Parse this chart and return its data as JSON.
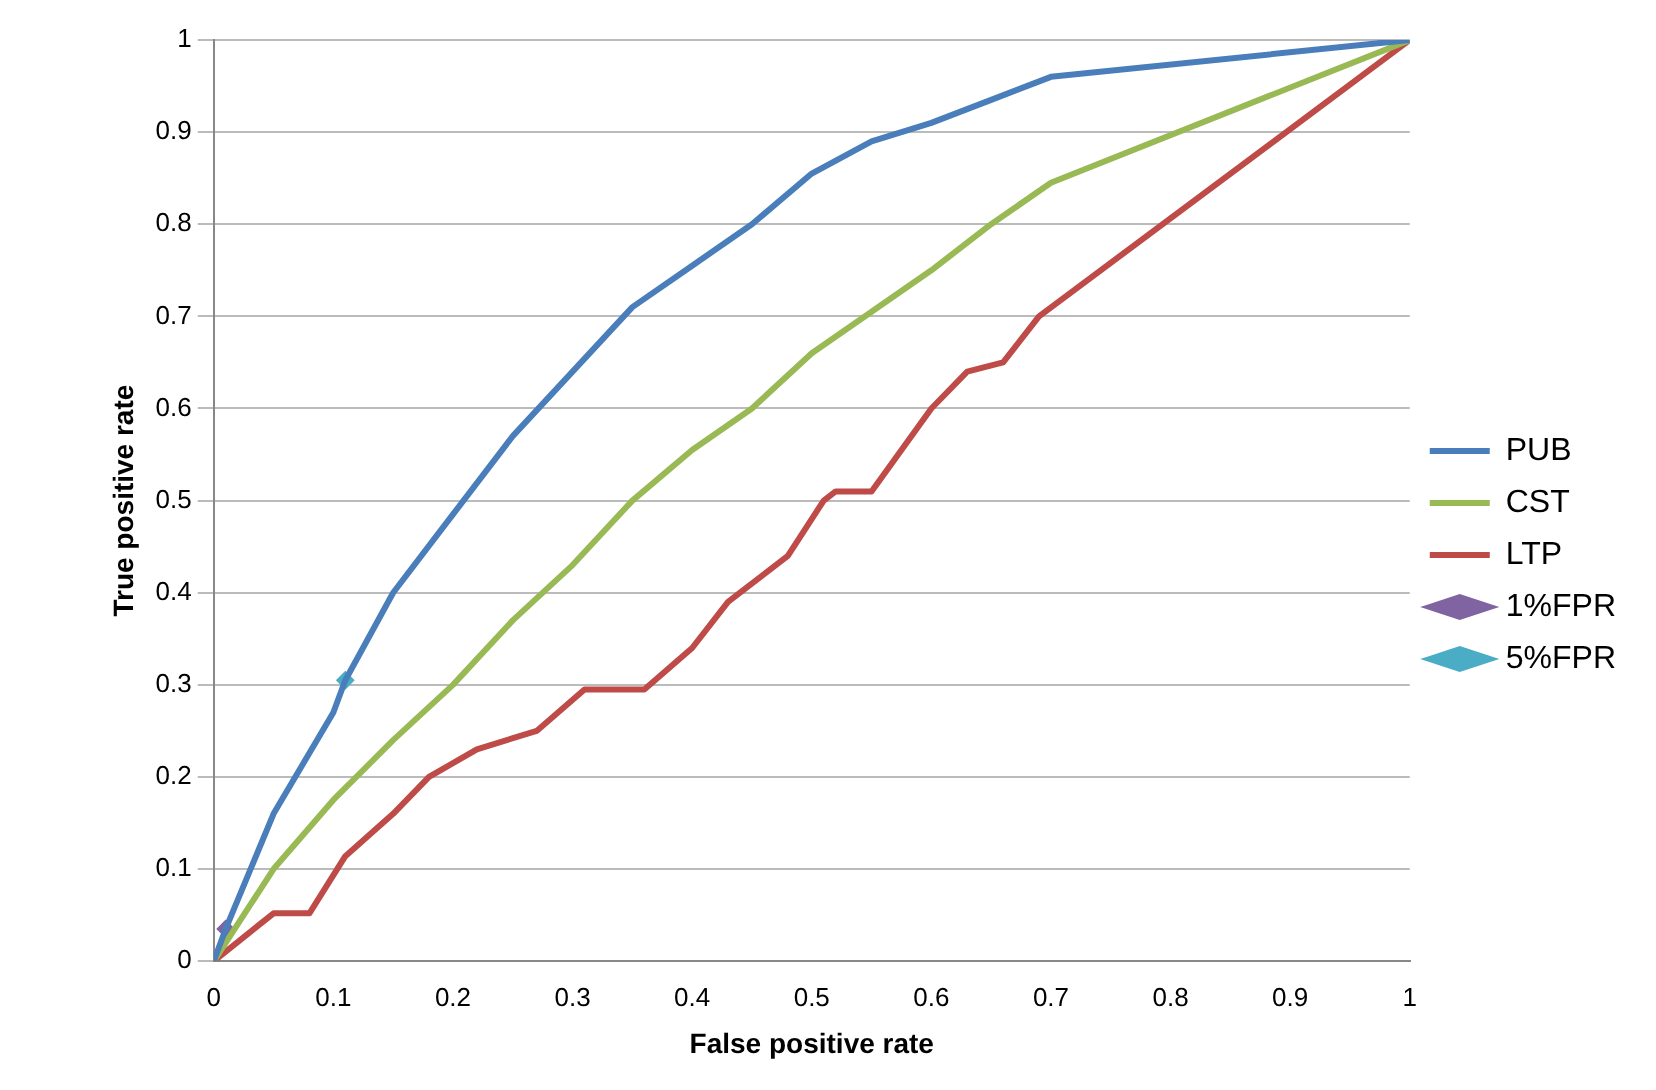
{
  "chart_data": {
    "type": "line",
    "xlabel": "False positive rate",
    "ylabel": "True positive rate",
    "xlim": [
      0,
      1
    ],
    "ylim": [
      0,
      1
    ],
    "xticks": [
      0,
      0.1,
      0.2,
      0.3,
      0.4,
      0.5,
      0.6,
      0.7,
      0.8,
      0.9,
      1
    ],
    "yticks": [
      0,
      0.1,
      0.2,
      0.3,
      0.4,
      0.5,
      0.6,
      0.7,
      0.8,
      0.9,
      1
    ],
    "grid": "y",
    "legend": "right",
    "line_style": "solid",
    "series": [
      {
        "name": "PUB",
        "color": "#4a7ebb",
        "x": [
          0,
          0.01,
          0.05,
          0.1,
          0.11,
          0.15,
          0.2,
          0.25,
          0.3,
          0.35,
          0.4,
          0.45,
          0.5,
          0.55,
          0.6,
          0.65,
          0.7,
          1
        ],
        "values": [
          0,
          0.035,
          0.16,
          0.27,
          0.305,
          0.4,
          0.485,
          0.57,
          0.64,
          0.71,
          0.755,
          0.8,
          0.855,
          0.89,
          0.91,
          0.935,
          0.96,
          1
        ]
      },
      {
        "name": "CST",
        "color": "#98b954",
        "x": [
          0,
          0.05,
          0.1,
          0.15,
          0.2,
          0.25,
          0.3,
          0.35,
          0.4,
          0.45,
          0.5,
          0.55,
          0.6,
          0.65,
          0.7,
          1
        ],
        "values": [
          0,
          0.1,
          0.175,
          0.24,
          0.3,
          0.37,
          0.43,
          0.5,
          0.555,
          0.6,
          0.66,
          0.705,
          0.75,
          0.8,
          0.845,
          1
        ]
      },
      {
        "name": "LTP",
        "color": "#be4b48",
        "x": [
          0,
          0.05,
          0.08,
          0.11,
          0.15,
          0.18,
          0.22,
          0.27,
          0.31,
          0.36,
          0.4,
          0.43,
          0.48,
          0.51,
          0.52,
          0.55,
          0.6,
          0.63,
          0.66,
          0.69,
          1
        ],
        "values": [
          0,
          0.052,
          0.052,
          0.114,
          0.16,
          0.2,
          0.23,
          0.25,
          0.295,
          0.295,
          0.34,
          0.39,
          0.44,
          0.5,
          0.51,
          0.51,
          0.6,
          0.64,
          0.65,
          0.7,
          1
        ]
      },
      {
        "name": "1%FPR",
        "type": "scatter",
        "marker": "diamond",
        "color": "#8064a2",
        "x": [
          0.01
        ],
        "values": [
          0.035
        ]
      },
      {
        "name": "5%FPR",
        "type": "scatter",
        "marker": "diamond",
        "color": "#4bacc6",
        "x": [
          0.11
        ],
        "values": [
          0.305
        ]
      }
    ]
  }
}
